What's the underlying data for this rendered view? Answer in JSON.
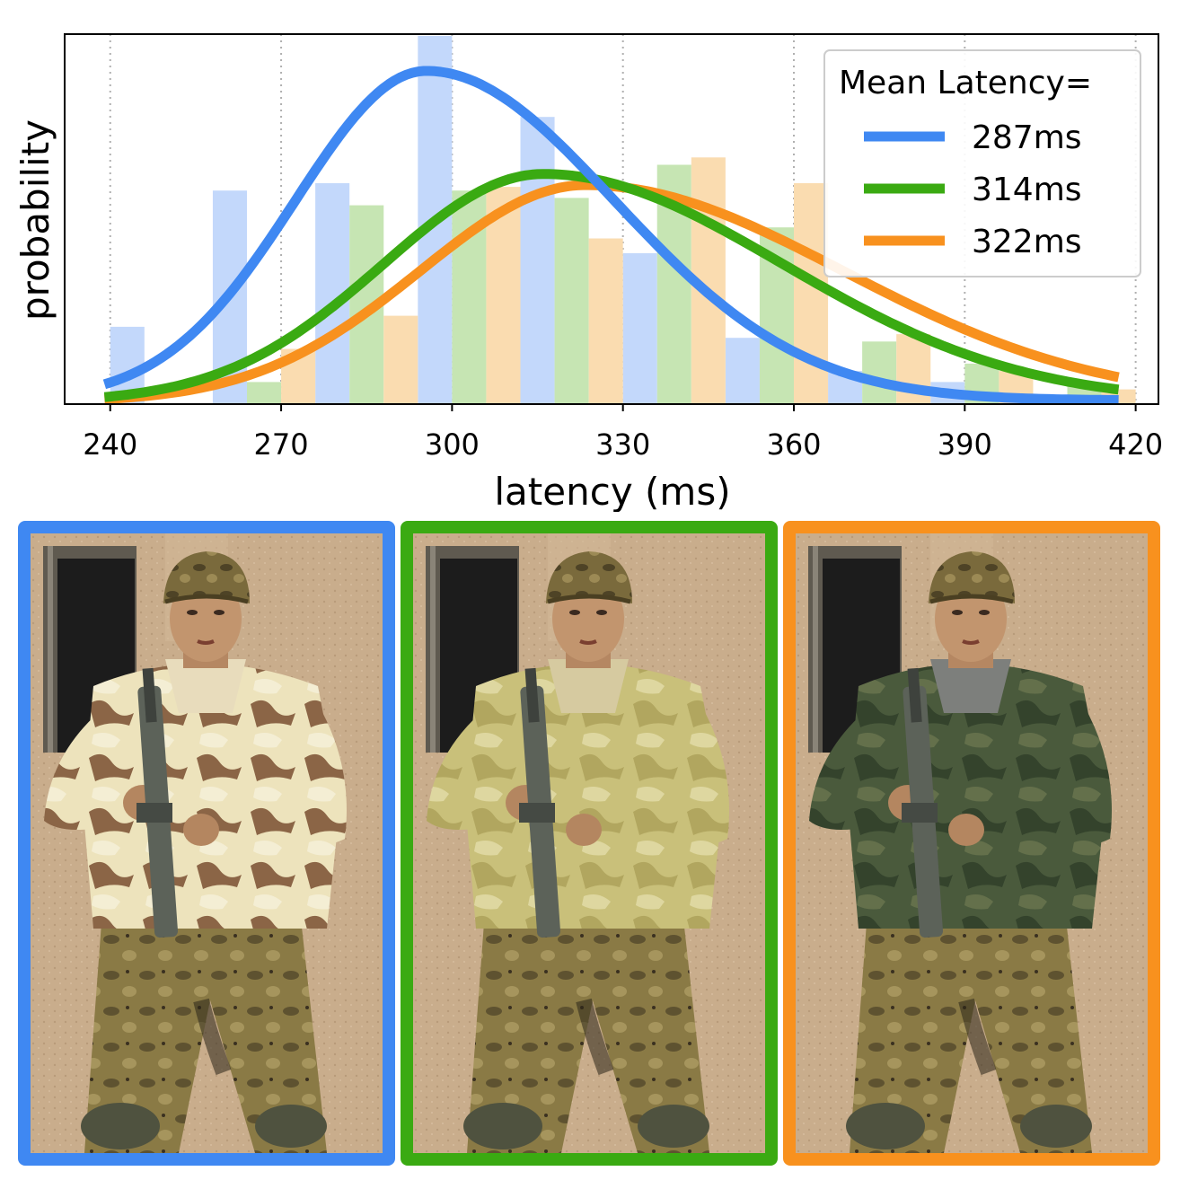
{
  "chart_data": {
    "type": "bar",
    "xlabel": "latency (ms)",
    "ylabel": "probability",
    "xlim": [
      232,
      424
    ],
    "ylim": [
      0,
      1
    ],
    "x_ticks": [
      240,
      270,
      300,
      330,
      360,
      390,
      420
    ],
    "grid": "x-dotted",
    "legend": {
      "title": "Mean Latency=",
      "placement": "top-right"
    },
    "bin_starts": [
      240,
      258,
      276,
      294,
      312,
      330,
      348,
      366,
      384,
      402
    ],
    "bin_width": 18,
    "series": [
      {
        "name": "287ms",
        "color": "#3f88f2",
        "bar_color": "#c3d8fb",
        "hist": [
          0.21,
          0.58,
          0.6,
          1.0,
          0.78,
          0.41,
          0.18,
          0.09,
          0.06,
          0.0
        ],
        "curve": {
          "mean": 295.5,
          "sd_left": 23,
          "sd_right": 33,
          "peak": 0.905,
          "base": 0.01
        }
      },
      {
        "name": "314ms",
        "color": "#3aaa12",
        "bar_color": "#c6e5b3",
        "hist": [
          0.0,
          0.06,
          0.54,
          0.58,
          0.56,
          0.65,
          0.48,
          0.17,
          0.11,
          0.05
        ],
        "curve": {
          "mean": 316,
          "sd_left": 28,
          "sd_right": 42,
          "peak": 0.625,
          "base": 0.005
        }
      },
      {
        "name": "322ms",
        "color": "#f8911e",
        "bar_color": "#fadcb0",
        "hist": [
          0.0,
          0.15,
          0.24,
          0.59,
          0.45,
          0.67,
          0.6,
          0.19,
          0.09,
          0.04
        ],
        "curve": {
          "mean": 323.5,
          "sd_left": 29,
          "sd_right": 45,
          "peak": 0.595,
          "base": 0.005
        }
      }
    ]
  },
  "panels": [
    {
      "name": "panel-287ms",
      "border_color": "#3f88f2",
      "jacket": "cream-brown-patchwork"
    },
    {
      "name": "panel-314ms",
      "border_color": "#3aaa12",
      "jacket": "khaki-yellow-camouflage"
    },
    {
      "name": "panel-322ms",
      "border_color": "#f8911e",
      "jacket": "green-woodland-camouflage"
    }
  ]
}
